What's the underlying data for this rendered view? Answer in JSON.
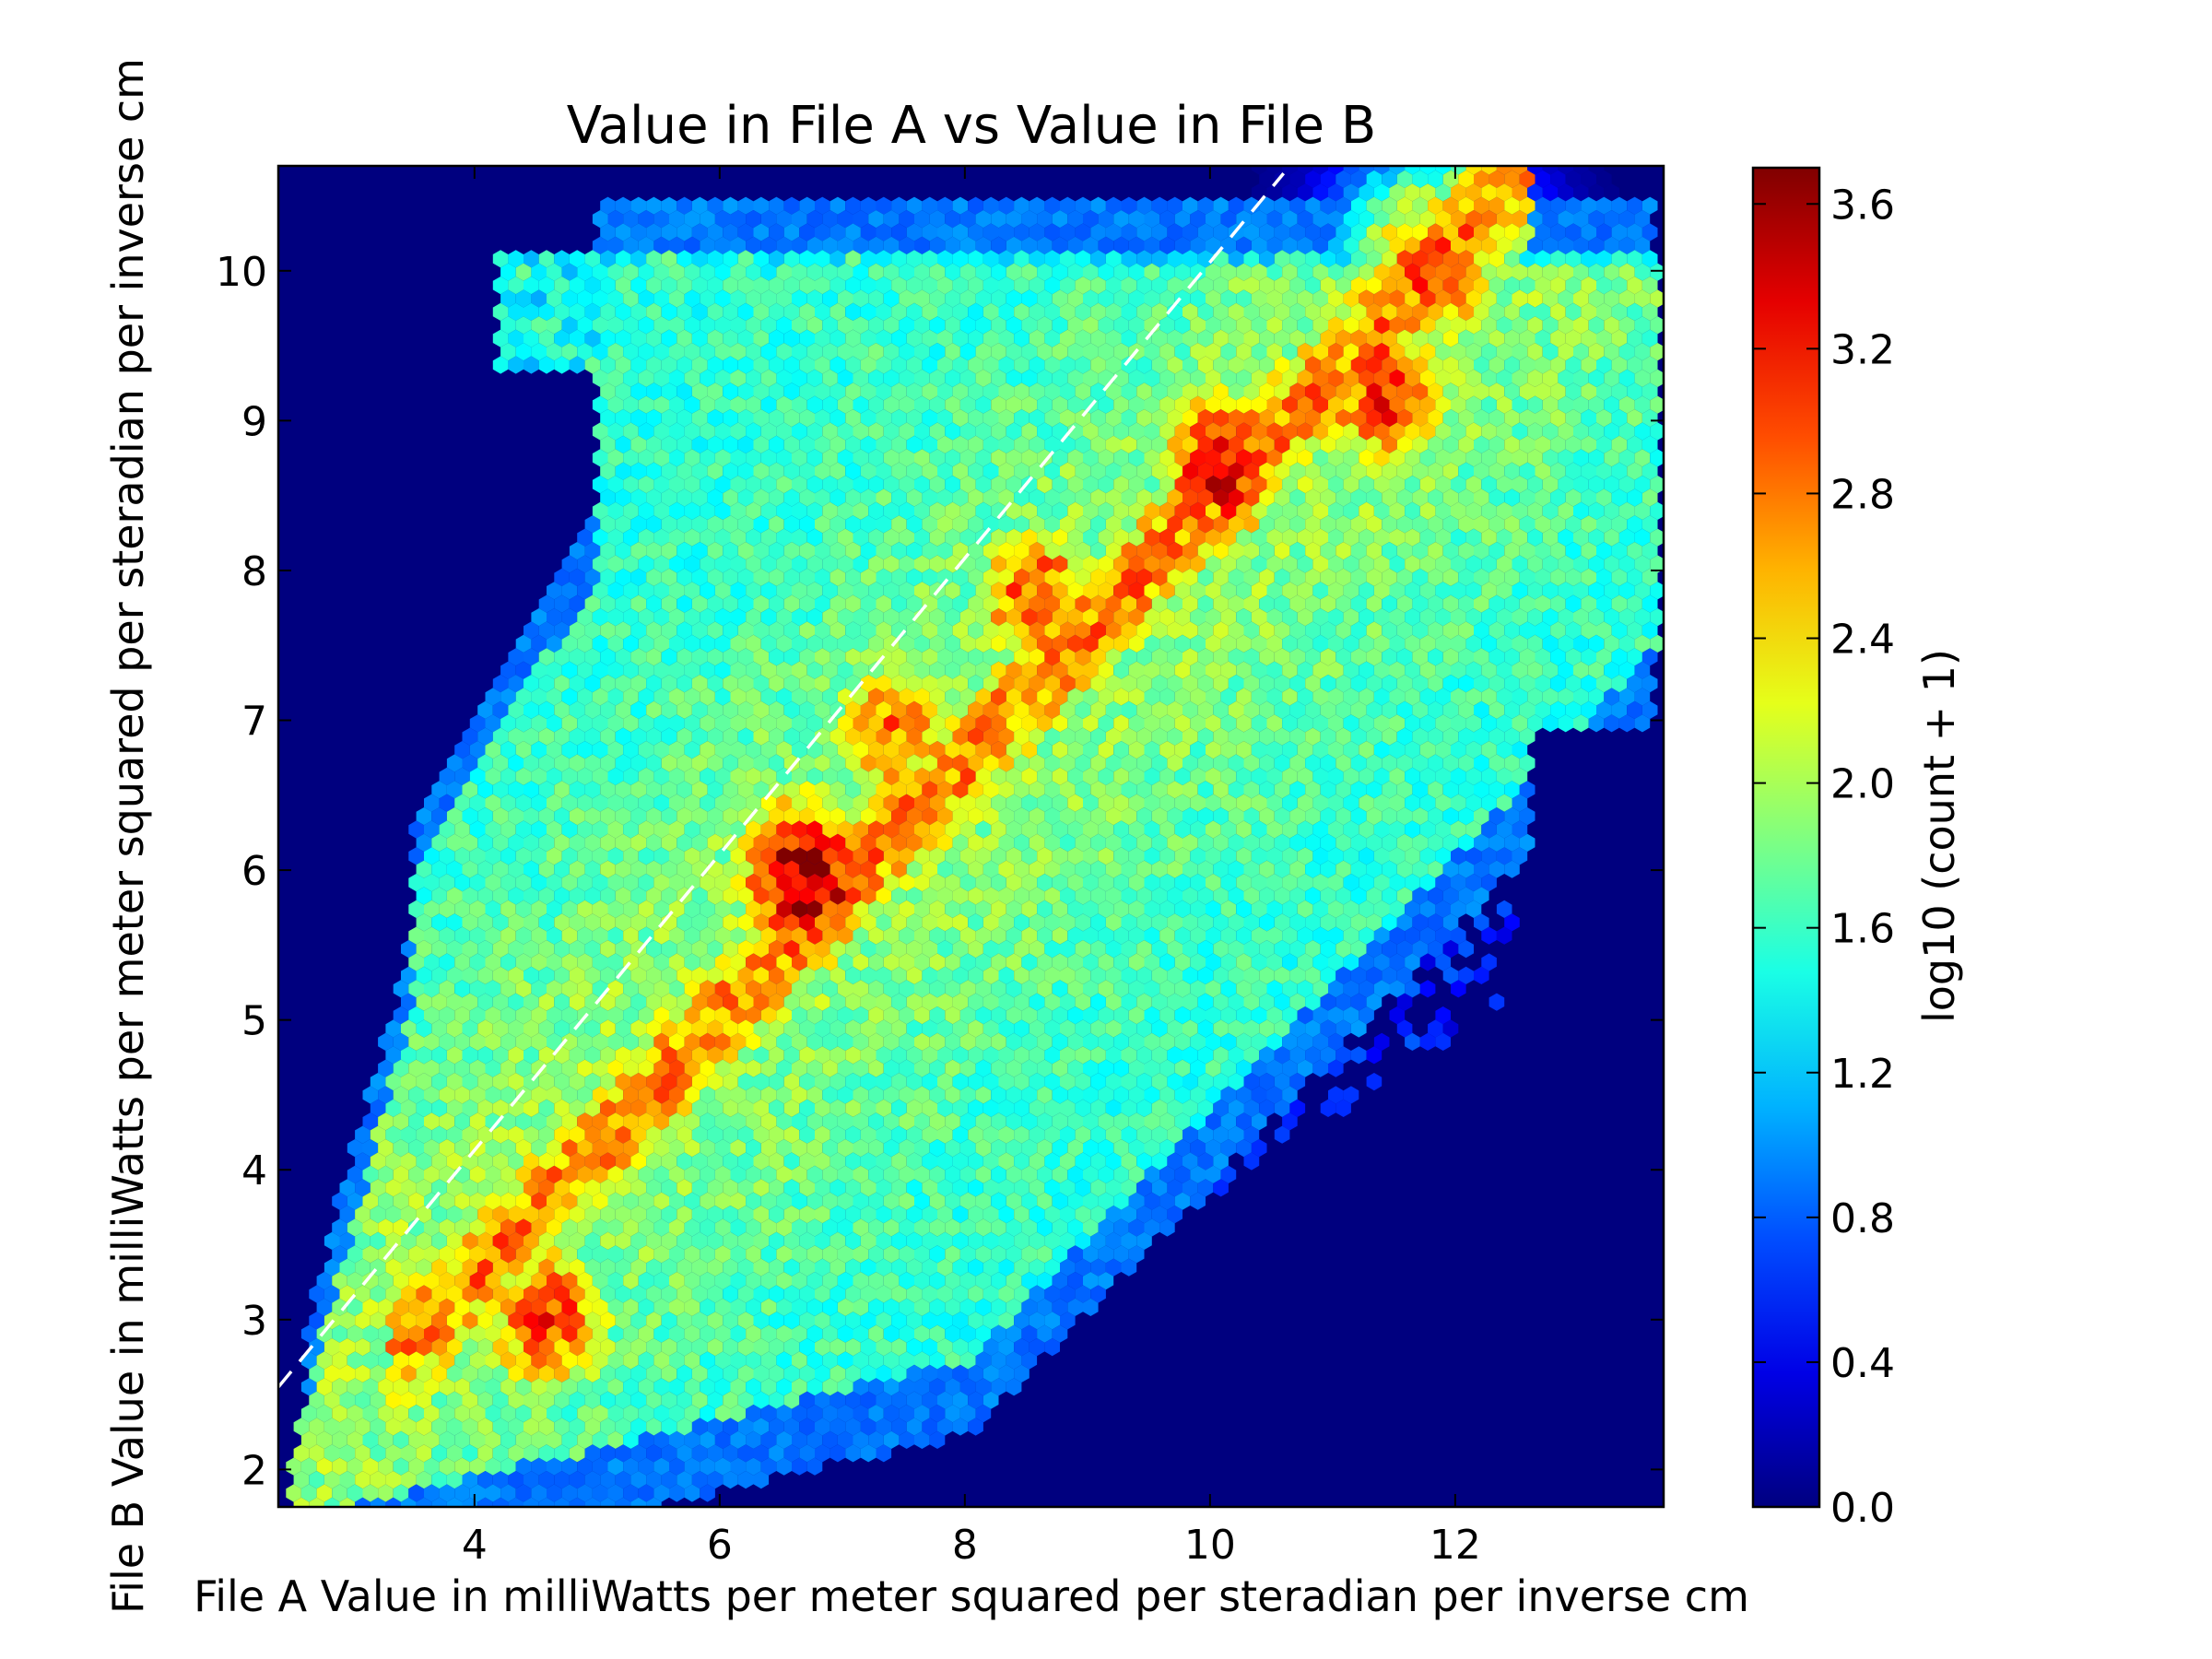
{
  "chart_data": {
    "type": "heatmap",
    "subtype": "hexbin",
    "title": "Value in File A vs Value in File B",
    "xlabel": "File A Value in milliWatts per meter squared per steradian per inverse cm",
    "ylabel": "File B Value in milliWatts per meter squared per steradian per inverse cm",
    "xlim": [
      2.4,
      13.7
    ],
    "ylim": [
      1.75,
      10.7
    ],
    "x_ticks": [
      4,
      6,
      8,
      10,
      12
    ],
    "y_ticks": [
      2,
      3,
      4,
      5,
      6,
      7,
      8,
      9,
      10
    ],
    "background_color": "#00007f",
    "colormap": "jet",
    "grid": false,
    "reference_line": {
      "style": "dashed",
      "color": "#ffffff",
      "from": [
        2.4,
        2.55
      ],
      "to": [
        10.6,
        10.65
      ]
    },
    "colorbar": {
      "label": "log10 (count + 1)",
      "range": [
        0.0,
        3.7
      ],
      "ticks": [
        "0.0",
        "0.4",
        "0.8",
        "1.2",
        "1.6",
        "2.0",
        "2.4",
        "2.8",
        "3.2",
        "3.6"
      ],
      "position": "right"
    },
    "density_clusters": [
      {
        "x": 6.7,
        "y": 5.95,
        "peak_log10_count": 3.6
      },
      {
        "x": 4.6,
        "y": 3.0,
        "peak_log10_count": 3.0
      },
      {
        "x": 10.1,
        "y": 8.7,
        "peak_log10_count": 3.3
      },
      {
        "x": 8.6,
        "y": 7.8,
        "peak_log10_count": 3.0
      },
      {
        "x": 11.8,
        "y": 10.0,
        "peak_log10_count": 3.0
      },
      {
        "x": 11.4,
        "y": 9.2,
        "peak_log10_count": 3.1
      },
      {
        "x": 7.4,
        "y": 6.9,
        "peak_log10_count": 2.8
      }
    ]
  }
}
